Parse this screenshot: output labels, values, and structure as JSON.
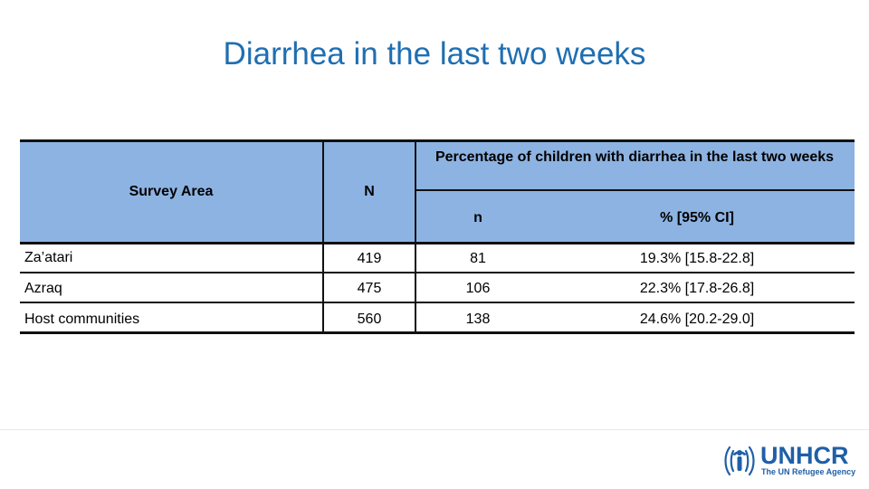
{
  "slide": {
    "title": "Diarrhea in the last two weeks"
  },
  "table": {
    "headers": {
      "survey_area": "Survey Area",
      "n_total": "N",
      "group": "Percentage of children with diarrhea in the last two weeks",
      "n": "n",
      "pct": "% [95% CI]"
    },
    "rows": [
      {
        "area": "Za’atari",
        "N": "419",
        "n": "81",
        "pct": "19.3% [15.8-22.8]"
      },
      {
        "area": "Azraq",
        "N": "475",
        "n": "106",
        "pct": "22.3% [17.8-26.8]"
      },
      {
        "area": "Host communities",
        "N": "560",
        "n": "138",
        "pct": "24.6% [20.2-29.0]"
      }
    ],
    "header_color": "#8db3e2"
  },
  "logo": {
    "name": "UNHCR",
    "tagline": "The UN Refugee Agency",
    "color": "#1f5fa8"
  },
  "colors": {
    "title": "#1f6fb2"
  }
}
